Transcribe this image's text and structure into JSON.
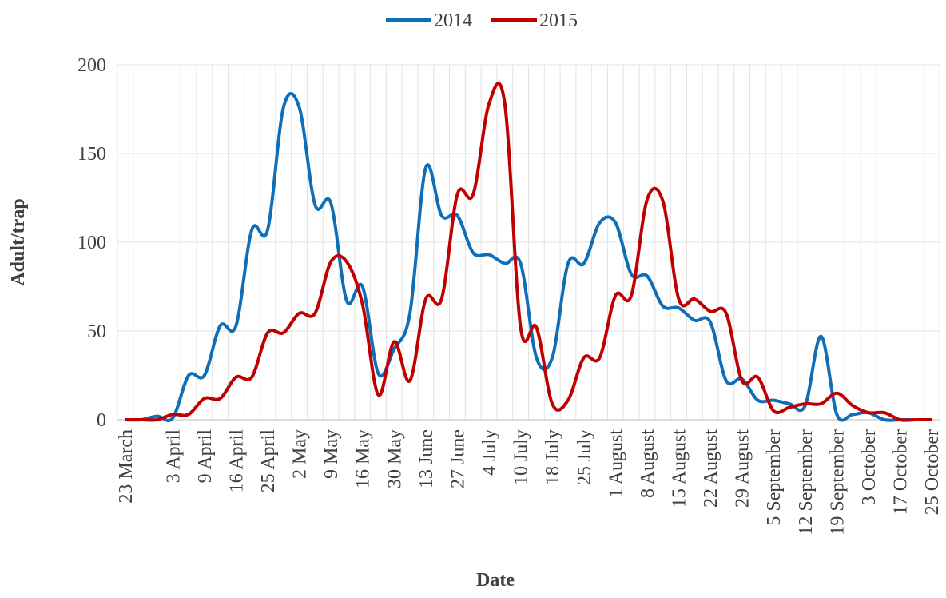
{
  "chart_data": {
    "type": "line",
    "x_label": "Date",
    "y_label": "Adult/trap",
    "categories": [
      "23 March",
      null,
      null,
      "3 April",
      null,
      "9 April",
      null,
      "16 April",
      null,
      "25 April",
      null,
      "2 May",
      null,
      "9 May",
      null,
      "16 May",
      null,
      "30 May",
      null,
      "13 June",
      null,
      "27 June",
      null,
      "4 July",
      null,
      "10 July",
      null,
      "18 July",
      null,
      "25 July",
      null,
      "1 August",
      null,
      "8 August",
      null,
      "15 August",
      null,
      "22 August",
      null,
      "29 August",
      null,
      "5 September",
      null,
      "12 September",
      null,
      "19 September",
      null,
      "3 October",
      null,
      "17 October",
      null,
      "25 October"
    ],
    "series": [
      {
        "name": "2014",
        "color": "#0e6eb8",
        "values": [
          0,
          0,
          2,
          1,
          25,
          25,
          53,
          53,
          107,
          107,
          176,
          176,
          121,
          122,
          67,
          75,
          26,
          40,
          60,
          142,
          115,
          115,
          94,
          93,
          88,
          88,
          35,
          35,
          88,
          88,
          111,
          111,
          82,
          81,
          64,
          63,
          56,
          55,
          22,
          23,
          11,
          11,
          9,
          8,
          47,
          3,
          3,
          4,
          0,
          0,
          0,
          0
        ]
      },
      {
        "name": "2015",
        "color": "#c00000",
        "values": [
          0,
          0,
          0,
          3,
          3,
          12,
          12,
          24,
          24,
          49,
          49,
          60,
          60,
          89,
          89,
          65,
          14,
          44,
          22,
          68,
          68,
          127,
          127,
          178,
          178,
          52,
          52,
          9,
          11,
          35,
          35,
          70,
          70,
          124,
          123,
          68,
          68,
          61,
          60,
          22,
          24,
          5,
          7,
          9,
          9,
          15,
          8,
          4,
          4,
          0,
          0,
          0
        ]
      }
    ],
    "ylim": [
      0,
      200
    ],
    "yticks": [
      0,
      50,
      100,
      150,
      200
    ],
    "grid": true,
    "legend": "top"
  }
}
